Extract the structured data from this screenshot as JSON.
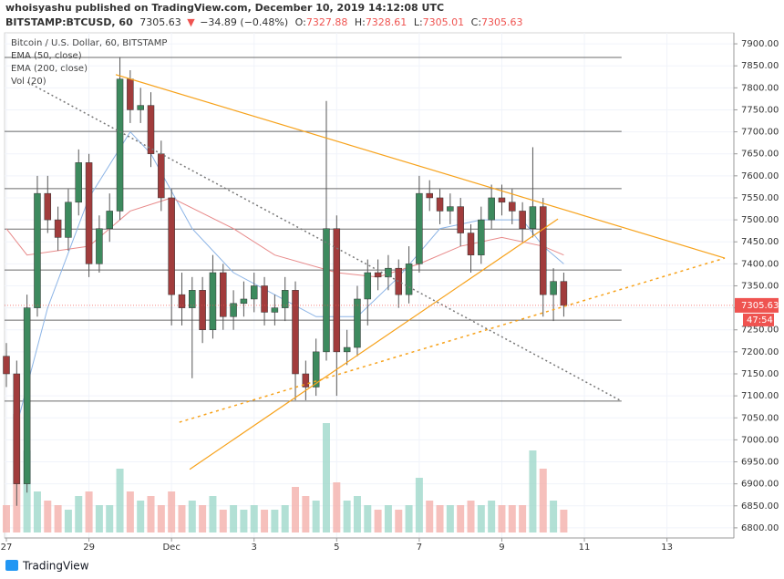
{
  "header": {
    "author_line": "whoisyashu published on TradingView.com, December 10, 2019 14:12:08 UTC",
    "symbol": "BITSTAMP:BTCUSD, 60",
    "price": "7305.63",
    "arrow": "▼",
    "change": "−34.89 (−0.48%)",
    "o_label": "O:",
    "o": "7327.88",
    "h_label": "H:",
    "h": "7328.61",
    "l_label": "L:",
    "l": "7305.01",
    "c_label": "C:",
    "c": "7305.63"
  },
  "chart_data": {
    "type": "candlestick",
    "title": "Bitcoin / U.S. Dollar, 60, BITSTAMP",
    "x": [
      0,
      0.25,
      0.5,
      0.75,
      1,
      1.25,
      1.5,
      1.75,
      2,
      2.25,
      2.5,
      2.75,
      3,
      3.25,
      3.5,
      3.75,
      4,
      4.25,
      4.5,
      4.75,
      5,
      5.25,
      5.5,
      5.75,
      6,
      6.25,
      6.5,
      6.75,
      7,
      7.25,
      7.5,
      7.75,
      8,
      8.25,
      8.5,
      8.75,
      9,
      9.25,
      9.5,
      9.75,
      10,
      10.25,
      10.5,
      10.75,
      11,
      11.25,
      11.5,
      11.75,
      12,
      12.25,
      12.5,
      12.75,
      13,
      13.25,
      13.5
    ],
    "open": [
      7190,
      7150,
      6900,
      7300,
      7560,
      7500,
      7460,
      7540,
      7630,
      7400,
      7480,
      7520,
      7820,
      7750,
      7760,
      7650,
      7550,
      7330,
      7300,
      7340,
      7250,
      7380,
      7280,
      7310,
      7320,
      7350,
      7290,
      7300,
      7340,
      7150,
      7120,
      7200,
      7480,
      7200,
      7210,
      7320,
      7380,
      7370,
      7390,
      7330,
      7400,
      7560,
      7550,
      7520,
      7530,
      7470,
      7420,
      7500,
      7550,
      7540,
      7520,
      7480,
      7530,
      7330,
      7360
    ],
    "high": [
      7220,
      7180,
      7330,
      7600,
      7600,
      7530,
      7570,
      7660,
      7650,
      7510,
      7560,
      7870,
      7840,
      7800,
      7790,
      7680,
      7570,
      7380,
      7370,
      7370,
      7420,
      7400,
      7340,
      7360,
      7380,
      7370,
      7330,
      7370,
      7360,
      7180,
      7230,
      7770,
      7510,
      7250,
      7350,
      7410,
      7410,
      7420,
      7410,
      7440,
      7600,
      7590,
      7570,
      7560,
      7550,
      7490,
      7530,
      7580,
      7580,
      7570,
      7540,
      7665,
      7550,
      7390,
      7380
    ],
    "low": [
      7120,
      6850,
      6880,
      7280,
      7470,
      7430,
      7430,
      7510,
      7370,
      7380,
      7450,
      7500,
      7720,
      7720,
      7620,
      7520,
      7260,
      7260,
      7140,
      7220,
      7230,
      7250,
      7250,
      7280,
      7290,
      7260,
      7260,
      7270,
      7090,
      7090,
      7100,
      7180,
      7100,
      7170,
      7190,
      7260,
      7340,
      7340,
      7300,
      7310,
      7380,
      7520,
      7490,
      7490,
      7440,
      7380,
      7400,
      7480,
      7510,
      7490,
      7450,
      7460,
      7280,
      7270,
      7280
    ],
    "close": [
      7150,
      6900,
      7300,
      7560,
      7500,
      7460,
      7540,
      7630,
      7400,
      7480,
      7520,
      7820,
      7750,
      7760,
      7650,
      7550,
      7330,
      7300,
      7340,
      7250,
      7380,
      7280,
      7310,
      7320,
      7350,
      7290,
      7300,
      7340,
      7150,
      7120,
      7200,
      7480,
      7200,
      7210,
      7320,
      7380,
      7370,
      7390,
      7330,
      7400,
      7560,
      7550,
      7520,
      7530,
      7470,
      7420,
      7500,
      7550,
      7540,
      7520,
      7480,
      7530,
      7330,
      7360,
      7305.63
    ],
    "volume_name": "Vol (20)",
    "volume": [
      30,
      130,
      90,
      45,
      35,
      30,
      25,
      40,
      45,
      30,
      30,
      70,
      45,
      35,
      40,
      30,
      45,
      30,
      35,
      30,
      40,
      25,
      30,
      25,
      30,
      25,
      25,
      30,
      50,
      40,
      35,
      120,
      55,
      35,
      40,
      30,
      25,
      30,
      25,
      30,
      60,
      35,
      30,
      30,
      30,
      35,
      30,
      35,
      30,
      30,
      30,
      90,
      70,
      35,
      25
    ],
    "up_color": "#3d8a5e",
    "down_color": "#a13c3c",
    "volume_up_color": "#9fd8cb",
    "volume_down_color": "#f4b0ab",
    "series": [
      {
        "name": "EMA (50, close)",
        "color": "#8cb4e6",
        "x": [
          0.3,
          1,
          2,
          3,
          3.5,
          4.5,
          5.5,
          6.5,
          7.5,
          8.5,
          9.5,
          10.5,
          11.5,
          12.5,
          13,
          13.5
        ],
        "values": [
          7050,
          7300,
          7550,
          7700,
          7650,
          7480,
          7380,
          7330,
          7280,
          7280,
          7370,
          7480,
          7500,
          7500,
          7440,
          7400
        ]
      },
      {
        "name": "EMA (200, close)",
        "color": "#e88a8a",
        "x": [
          0,
          0.5,
          2,
          3,
          4,
          5.5,
          6.5,
          8,
          9,
          10,
          11,
          12,
          13,
          13.5
        ],
        "values": [
          7480,
          7420,
          7440,
          7520,
          7550,
          7480,
          7420,
          7380,
          7370,
          7400,
          7440,
          7460,
          7440,
          7420
        ]
      }
    ],
    "horizontal_lines": {
      "values": [
        7869,
        7701,
        7571,
        7479,
        7386,
        7272,
        7088
      ],
      "x_end": 14.9,
      "color": "#6b6b6b"
    },
    "trend_lines": [
      {
        "x": [
          2.65,
          17.4
        ],
        "y": [
          7830,
          7413
        ],
        "color": "#f7a21b",
        "dash": "solid"
      },
      {
        "x": [
          4.44,
          13.36
        ],
        "y": [
          6933,
          7502
        ],
        "color": "#f7a21b",
        "dash": "solid"
      },
      {
        "x": [
          4.19,
          17.4
        ],
        "y": [
          7040,
          7413
        ],
        "color": "#f7a21b",
        "dash": "dotted"
      },
      {
        "x": [
          0.51,
          14.9
        ],
        "y": [
          7813,
          7088
        ],
        "color": "#777777",
        "dash": "dotted"
      }
    ],
    "last_price": 7305.63,
    "countdown": "47:54",
    "last_color": "#ef5350",
    "ylim": [
      6777,
      7925
    ],
    "yticks": [
      {
        "value": 6800,
        "label": "6800.00"
      },
      {
        "value": 6850,
        "label": "6850.00"
      },
      {
        "value": 6900,
        "label": "6900.00"
      },
      {
        "value": 6950,
        "label": "6950.00"
      },
      {
        "value": 7000,
        "label": "7000.00"
      },
      {
        "value": 7050,
        "label": "7050.00"
      },
      {
        "value": 7100,
        "label": "7100.00"
      },
      {
        "value": 7150,
        "label": "7150.00"
      },
      {
        "value": 7200,
        "label": "7200.00"
      },
      {
        "value": 7250,
        "label": "7250.00"
      },
      {
        "value": 7300,
        "label": "7300.00"
      },
      {
        "value": 7350,
        "label": "7350.00"
      },
      {
        "value": 7400,
        "label": "7400.00"
      },
      {
        "value": 7450,
        "label": "7450.00"
      },
      {
        "value": 7500,
        "label": "7500.00"
      },
      {
        "value": 7550,
        "label": "7550.00"
      },
      {
        "value": 7600,
        "label": "7600.00"
      },
      {
        "value": 7650,
        "label": "7650.00"
      },
      {
        "value": 7700,
        "label": "7700.00"
      },
      {
        "value": 7750,
        "label": "7750.00"
      },
      {
        "value": 7800,
        "label": "7800.00"
      },
      {
        "value": 7850,
        "label": "7850.00"
      },
      {
        "value": 7900,
        "label": "7900.00"
      }
    ],
    "xlim": [
      -0.044,
      17.62
    ],
    "xticks": [
      {
        "value": 0,
        "label": "27"
      },
      {
        "value": 2,
        "label": "29"
      },
      {
        "value": 4,
        "label": "Dec"
      },
      {
        "value": 6,
        "label": "3"
      },
      {
        "value": 8,
        "label": "5"
      },
      {
        "value": 10,
        "label": "7"
      },
      {
        "value": 12,
        "label": "9"
      },
      {
        "value": 14,
        "label": "11"
      },
      {
        "value": 16,
        "label": "13"
      }
    ],
    "grid": true
  },
  "footer": {
    "brand": "TradingView"
  }
}
